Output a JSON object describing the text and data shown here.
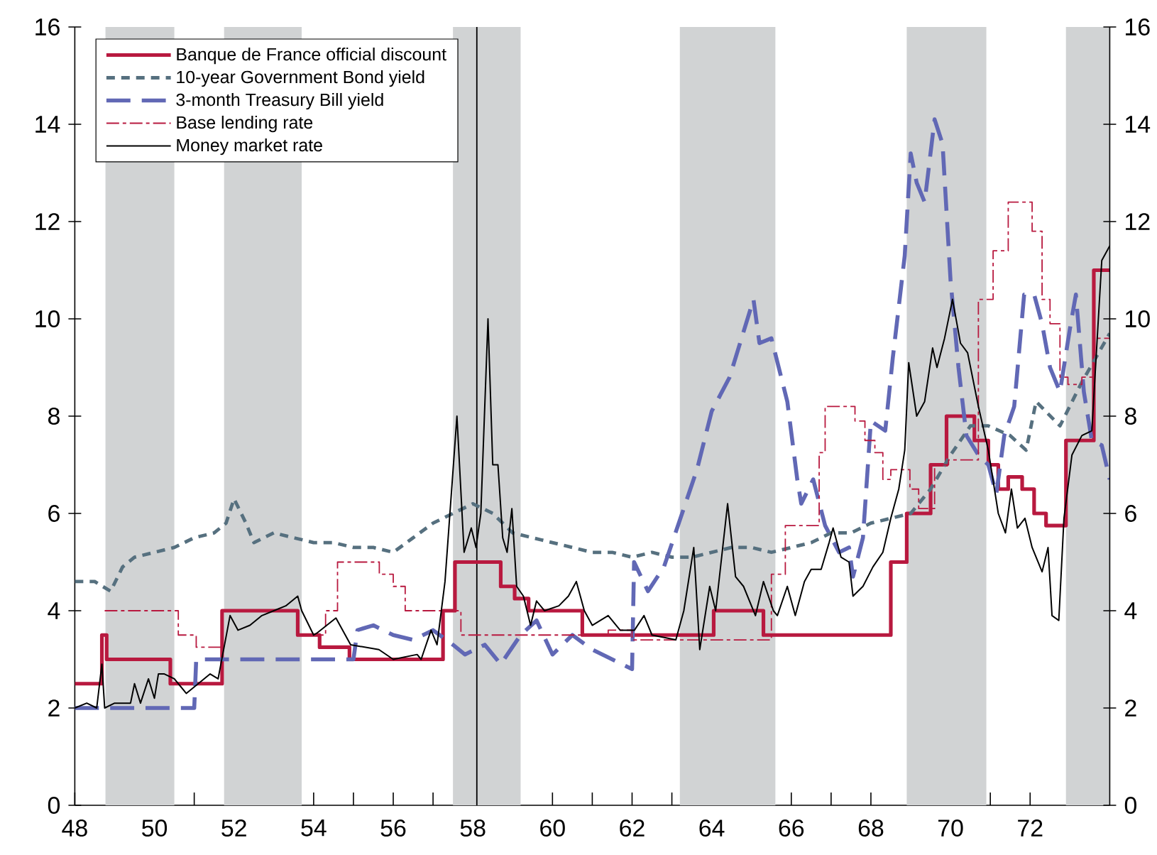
{
  "chart_data": {
    "type": "line",
    "xlim": [
      48,
      74
    ],
    "ylim": [
      0,
      16
    ],
    "y2lim": [
      0,
      16
    ],
    "xticks": [
      48,
      {
        "value": 49,
        "label": null
      },
      50,
      {
        "value": 51,
        "label": null
      },
      52,
      {
        "value": 53,
        "label": null
      },
      54,
      {
        "value": 55,
        "label": null
      },
      56,
      {
        "value": 57,
        "label": null
      },
      58,
      {
        "value": 59,
        "label": null
      },
      60,
      {
        "value": 61,
        "label": null
      },
      62,
      {
        "value": 63,
        "label": null
      },
      64,
      {
        "value": 65,
        "label": null
      },
      66,
      {
        "value": 67,
        "label": null
      },
      68,
      {
        "value": 69,
        "label": null
      },
      70,
      {
        "value": 71,
        "label": null
      },
      72,
      {
        "value": 73,
        "label": null
      }
    ],
    "yticks": [
      0,
      2,
      4,
      6,
      8,
      10,
      12,
      14,
      16
    ],
    "y2ticks": [
      0,
      2,
      4,
      6,
      8,
      10,
      12,
      14,
      16
    ],
    "legend": "top left",
    "marker": "none",
    "bands": [
      {
        "axis": "x",
        "from": 48.77,
        "to": 50.5,
        "color": "#d1d3d4"
      },
      {
        "axis": "x",
        "from": 51.75,
        "to": 53.7,
        "color": "#d1d3d4"
      },
      {
        "axis": "x",
        "from": 57.5,
        "to": 59.2,
        "color": "#d1d3d4"
      },
      {
        "axis": "x",
        "from": 63.2,
        "to": 65.6,
        "color": "#d1d3d4"
      },
      {
        "axis": "x",
        "from": 68.9,
        "to": 70.9,
        "color": "#d1d3d4"
      },
      {
        "axis": "x",
        "from": 72.9,
        "to": 74,
        "color": "#d1d3d4"
      }
    ],
    "ref_lines": [
      {
        "axis": "x",
        "value": 58.1,
        "color": "#000000"
      }
    ],
    "series": [
      {
        "name": "Banque de France official discount",
        "type": "step",
        "color": "#b8193f",
        "line_style": "solid",
        "x": [
          48,
          48.68,
          48.8,
          50.4,
          51.7,
          53.6,
          54.15,
          54.9,
          57.25,
          57.55,
          58.7,
          59.05,
          59.4,
          60.75,
          64.05,
          65.3,
          68.5,
          68.9,
          69.5,
          69.9,
          70.6,
          70.95,
          71.2,
          71.45,
          71.8,
          72.1,
          72.4,
          72.9,
          73.6,
          74
        ],
        "values": [
          2.5,
          3.5,
          3.0,
          2.5,
          4.0,
          3.5,
          3.25,
          3.0,
          4.0,
          5.0,
          4.5,
          4.25,
          4.0,
          3.5,
          4.0,
          3.5,
          5.0,
          6.0,
          7.0,
          8.0,
          7.5,
          7.0,
          6.5,
          6.75,
          6.5,
          6.0,
          5.75,
          7.5,
          11.0,
          11.0
        ]
      },
      {
        "name": "10-year Government Bond yield",
        "color": "#56707f",
        "line_style": "dashed",
        "x": [
          48,
          48.5,
          48.9,
          49.2,
          49.5,
          50,
          50.5,
          51,
          51.5,
          51.8,
          52,
          52.3,
          52.5,
          53,
          53.5,
          54,
          54.5,
          55,
          55.5,
          56,
          56.5,
          57,
          57.5,
          58,
          58.5,
          59,
          59.5,
          60,
          60.5,
          61,
          61.5,
          62,
          62.5,
          63,
          63.5,
          64,
          64.5,
          65,
          65.5,
          66,
          66.5,
          67,
          67.5,
          68,
          68.5,
          69,
          69.5,
          70,
          70.5,
          70.95,
          71.5,
          71.9,
          72.15,
          72.75,
          73.3,
          74
        ],
        "values": [
          4.6,
          4.6,
          4.4,
          4.9,
          5.1,
          5.2,
          5.3,
          5.5,
          5.6,
          5.8,
          6.3,
          5.8,
          5.4,
          5.6,
          5.5,
          5.4,
          5.4,
          5.3,
          5.3,
          5.2,
          5.5,
          5.8,
          6.0,
          6.2,
          6.0,
          5.6,
          5.5,
          5.4,
          5.3,
          5.2,
          5.2,
          5.1,
          5.2,
          5.1,
          5.1,
          5.2,
          5.3,
          5.3,
          5.2,
          5.3,
          5.4,
          5.6,
          5.6,
          5.8,
          5.9,
          6.0,
          6.5,
          7.2,
          7.8,
          7.8,
          7.6,
          7.3,
          8.3,
          7.8,
          8.7,
          9.7
        ]
      },
      {
        "name": "3-month Treasury Bill yield",
        "color": "#6168b5",
        "line_style": "dashed",
        "x": [
          48,
          51.0,
          51.05,
          55.0,
          55.1,
          55.5,
          56,
          56.5,
          57,
          57.5,
          57.8,
          58.3,
          58.7,
          59.2,
          59.6,
          60,
          60.5,
          61,
          61.5,
          62.0,
          62.05,
          62.4,
          62.8,
          63.63,
          64.0,
          64.45,
          65.05,
          65.2,
          65.5,
          65.9,
          66.15,
          66.25,
          66.55,
          66.85,
          67.2,
          67.45,
          67.55,
          67.8,
          68.0,
          68.36,
          68.55,
          68.85,
          69.0,
          69.15,
          69.35,
          69.6,
          69.8,
          70.0,
          70.2,
          70.4,
          70.7,
          70.95,
          71.15,
          71.35,
          71.6,
          71.85,
          72.1,
          72.3,
          72.5,
          72.75,
          73.0,
          73.15,
          73.35,
          73.55,
          73.8,
          74.0
        ],
        "values": [
          2.0,
          2.0,
          3.0,
          3.0,
          3.6,
          3.7,
          3.5,
          3.4,
          3.6,
          3.3,
          3.1,
          3.3,
          2.9,
          3.5,
          3.8,
          3.1,
          3.5,
          3.2,
          3.0,
          2.8,
          5.0,
          4.4,
          4.9,
          6.9,
          8.1,
          8.8,
          10.4,
          9.5,
          9.6,
          8.3,
          6.7,
          6.2,
          6.7,
          5.75,
          5.2,
          5.3,
          4.7,
          5.5,
          7.9,
          7.7,
          9.2,
          11.3,
          13.4,
          12.8,
          12.4,
          14.1,
          13.6,
          10.8,
          9.0,
          7.6,
          7.2,
          7.0,
          6.4,
          7.6,
          8.2,
          10.5,
          10.5,
          9.9,
          9.0,
          8.5,
          9.8,
          10.5,
          8.5,
          7.5,
          7.4,
          6.7
        ]
      },
      {
        "name": "Base lending rate",
        "type": "step",
        "color": "#b8193f",
        "line_style": "dashed",
        "x": [
          48.75,
          50.6,
          51.05,
          51.7,
          53.6,
          54.3,
          54.6,
          55.65,
          56.0,
          56.3,
          57.7,
          61.4,
          62.0,
          65.5,
          65.85,
          66.7,
          66.85,
          67.6,
          67.85,
          68.1,
          68.3,
          68.5,
          68.98,
          69.2,
          69.6,
          69.95,
          70.7,
          71.07,
          71.45,
          72.05,
          72.3,
          72.5,
          72.75,
          72.95,
          73.3,
          73.6,
          74
        ],
        "values": [
          4.0,
          3.5,
          3.25,
          4.0,
          3.5,
          4.0,
          5.0,
          4.75,
          4.5,
          4.0,
          3.5,
          3.6,
          3.4,
          4.75,
          5.75,
          7.25,
          8.2,
          7.9,
          7.5,
          7.25,
          6.7,
          6.9,
          6.5,
          6.1,
          7.0,
          7.1,
          10.4,
          11.4,
          12.4,
          11.8,
          10.4,
          9.9,
          8.8,
          8.65,
          8.8,
          9.6,
          9.6
        ]
      },
      {
        "name": "Money market rate",
        "color": "#000000",
        "line_style": "solid",
        "x": [
          48,
          48.3,
          48.55,
          48.68,
          48.75,
          49.0,
          49.4,
          49.5,
          49.65,
          49.85,
          50.0,
          50.1,
          50.25,
          50.5,
          50.8,
          51.1,
          51.4,
          51.6,
          51.9,
          52.1,
          52.4,
          52.7,
          53.0,
          53.3,
          53.6,
          53.7,
          54.0,
          54.1,
          54.56,
          54.93,
          55.64,
          56.0,
          56.6,
          56.7,
          56.95,
          57.1,
          57.3,
          57.6,
          57.78,
          57.96,
          58.08,
          58.2,
          58.38,
          58.5,
          58.63,
          58.75,
          58.86,
          58.98,
          59.1,
          59.27,
          59.45,
          59.6,
          59.8,
          60.16,
          60.4,
          60.6,
          60.8,
          61.0,
          61.4,
          61.7,
          62.06,
          62.3,
          62.5,
          63.1,
          63.3,
          63.55,
          63.7,
          63.95,
          64.1,
          64.4,
          64.6,
          64.8,
          65.1,
          65.3,
          65.55,
          65.65,
          65.9,
          66.1,
          66.33,
          66.5,
          66.75,
          66.95,
          67.05,
          67.25,
          67.45,
          67.55,
          67.8,
          68.05,
          68.3,
          68.5,
          68.7,
          68.85,
          68.95,
          69.15,
          69.35,
          69.55,
          69.66,
          69.85,
          70.05,
          70.25,
          70.43,
          70.7,
          70.95,
          71.2,
          71.38,
          71.53,
          71.68,
          71.87,
          72.05,
          72.3,
          72.45,
          72.55,
          72.72,
          72.85,
          73.05,
          73.3,
          73.55,
          73.8,
          74.0
        ],
        "values": [
          2.0,
          2.1,
          2.0,
          2.9,
          2.0,
          2.1,
          2.1,
          2.5,
          2.1,
          2.6,
          2.2,
          2.7,
          2.7,
          2.6,
          2.3,
          2.5,
          2.7,
          2.6,
          3.9,
          3.6,
          3.7,
          3.9,
          4.0,
          4.1,
          4.3,
          4.0,
          3.5,
          3.55,
          3.85,
          3.3,
          3.2,
          3.0,
          3.1,
          3.0,
          3.6,
          3.3,
          4.6,
          8.0,
          5.2,
          5.7,
          5.3,
          6.0,
          10.0,
          7.0,
          7.0,
          5.5,
          5.2,
          6.1,
          4.5,
          4.3,
          3.7,
          4.2,
          4.0,
          4.1,
          4.3,
          4.6,
          4.0,
          3.7,
          3.9,
          3.6,
          3.6,
          3.9,
          3.5,
          3.4,
          4.0,
          5.3,
          3.2,
          4.5,
          4.0,
          6.2,
          4.7,
          4.5,
          3.9,
          4.6,
          4.0,
          3.9,
          4.5,
          3.9,
          4.6,
          4.85,
          4.85,
          5.4,
          5.7,
          5.1,
          5.0,
          4.3,
          4.5,
          4.9,
          5.2,
          5.9,
          6.5,
          7.3,
          9.1,
          8.0,
          8.3,
          9.4,
          9.0,
          9.6,
          10.4,
          9.5,
          9.3,
          8.2,
          7.3,
          6.0,
          5.6,
          6.5,
          5.7,
          5.9,
          5.3,
          4.8,
          5.3,
          3.9,
          3.8,
          5.9,
          7.2,
          7.6,
          7.7,
          11.2,
          11.5
        ]
      }
    ]
  }
}
